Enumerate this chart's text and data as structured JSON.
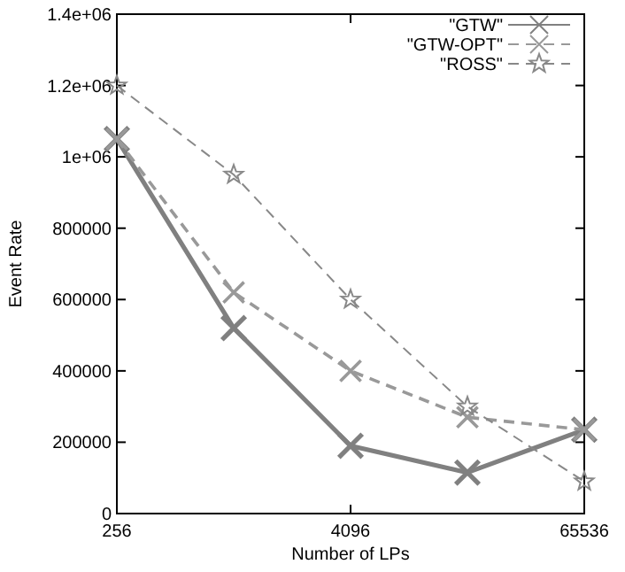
{
  "chart_data": {
    "type": "line",
    "xlabel": "Number of LPs",
    "ylabel": "Event Rate",
    "log": "x",
    "x": [
      256,
      1024,
      4096,
      16384,
      65536
    ],
    "xlim": [
      256,
      65536
    ],
    "xticks": [
      256,
      4096,
      65536
    ],
    "ylim": [
      0,
      1400000
    ],
    "yticks": [
      0,
      200000,
      400000,
      600000,
      800000,
      {
        "value": 1000000,
        "label": "1e+06"
      },
      {
        "value": 1200000,
        "label": "1.2e+06"
      },
      {
        "value": 1400000,
        "label": "1.4e+06"
      }
    ],
    "grid": false,
    "legend": "top right",
    "series": [
      {
        "name": "\"GTW\"",
        "color": "#808080",
        "line_style": "solid",
        "marker": "cross",
        "values": [
          1050000,
          520000,
          190000,
          115000,
          235000
        ]
      },
      {
        "name": "\"GTW-OPT\"",
        "color": "#999999",
        "line_style": "dashed",
        "marker": "cross",
        "values": [
          1050000,
          620000,
          400000,
          270000,
          235000
        ]
      },
      {
        "name": "\"ROSS\"",
        "color": "#888888",
        "line_style": "dashed",
        "marker": "star",
        "values": [
          1200000,
          950000,
          600000,
          300000,
          90000
        ]
      }
    ]
  }
}
